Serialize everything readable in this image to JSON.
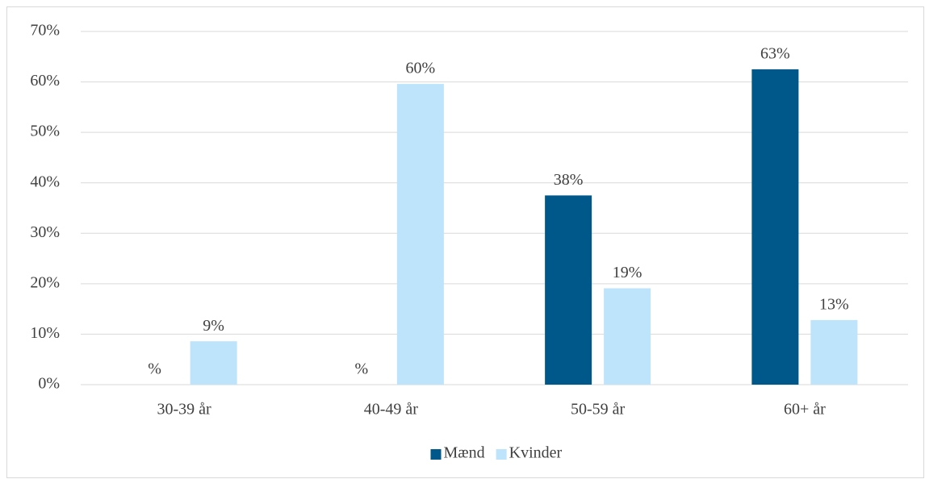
{
  "chart_data": {
    "type": "bar",
    "categories": [
      "30-39 år",
      "40-49 år",
      "50-59 år",
      "60+ år"
    ],
    "series": [
      {
        "name": "Mænd",
        "color": "#00578a",
        "values": [
          0,
          0,
          37.5,
          62.5
        ],
        "value_labels": [
          "%",
          "%",
          "38%",
          "63%"
        ]
      },
      {
        "name": "Kvinder",
        "color": "#bde4fb",
        "values": [
          8.6,
          59.6,
          19.1,
          12.8
        ],
        "value_labels": [
          "9%",
          "60%",
          "19%",
          "13%"
        ]
      }
    ],
    "ylim": [
      0,
      70
    ],
    "yticks": [
      {
        "value": 0,
        "label": "0%"
      },
      {
        "value": 10,
        "label": "10%"
      },
      {
        "value": 20,
        "label": "20%"
      },
      {
        "value": 30,
        "label": "30%"
      },
      {
        "value": 40,
        "label": "40%"
      },
      {
        "value": 50,
        "label": "50%"
      },
      {
        "value": 60,
        "label": "60%"
      },
      {
        "value": 70,
        "label": "70%"
      }
    ],
    "grid": true,
    "legend": "bottom"
  }
}
